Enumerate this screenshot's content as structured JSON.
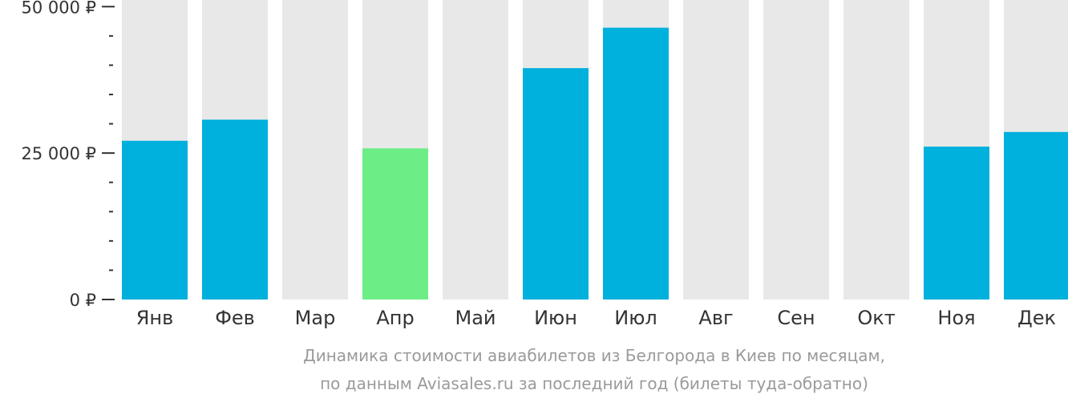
{
  "chart_data": {
    "type": "bar",
    "categories": [
      "Янв",
      "Фев",
      "Мар",
      "Апр",
      "Май",
      "Июн",
      "Июл",
      "Авг",
      "Сен",
      "Окт",
      "Ноя",
      "Дек"
    ],
    "values": [
      27100,
      30700,
      null,
      25800,
      null,
      39500,
      46400,
      null,
      null,
      null,
      26100,
      28600
    ],
    "highlight_category": "Апр",
    "ylim": [
      0,
      52500
    ],
    "yticks": [
      {
        "value": 0,
        "label": "0 ₽"
      },
      {
        "value": 25000,
        "label": "25 000 ₽"
      },
      {
        "value": 50000,
        "label": "50 000 ₽"
      }
    ],
    "minor_tick_step": 5000,
    "title": "Динамика стоимости авиабилетов из Белгорода в Киев по месяцам,",
    "subtitle": "по данным Aviasales.ru за последний год (билеты туда-обратно)",
    "xlabel": "",
    "ylabel": "",
    "colors": {
      "bar": "#00b0dd",
      "highlight": "#6ced86",
      "background_column": "#e8e8e8",
      "axis": "#333333"
    }
  }
}
